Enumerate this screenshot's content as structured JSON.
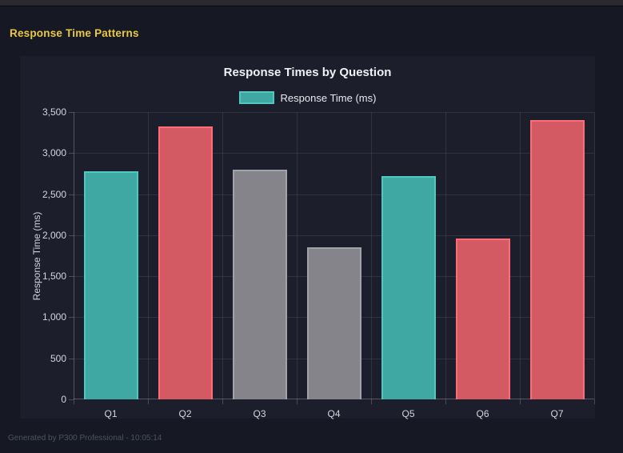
{
  "window": {
    "page_title": "Response Time Patterns"
  },
  "footer": {
    "text": "Generated by P300 Professional - 10:05:14"
  },
  "theme": {
    "page_bg": "#161924",
    "panel_bg": "#1c1e2c",
    "page_title_color": "#e9c93f",
    "teal_fill": "#3fa8a3",
    "teal_border": "#4fc8c0",
    "red_fill": "#d35a62",
    "red_border": "#ff6b79",
    "gray_fill": "#85848a",
    "gray_border": "#a3a2a9"
  },
  "chart_data": {
    "type": "bar",
    "title": "Response Times by Question",
    "xlabel": "",
    "ylabel": "Response Time (ms)",
    "categories": [
      "Q1",
      "Q2",
      "Q3",
      "Q4",
      "Q5",
      "Q6",
      "Q7"
    ],
    "series": [
      {
        "name": "Response Time (ms)",
        "values": [
          2780,
          3320,
          2800,
          1850,
          2720,
          1960,
          3400
        ]
      }
    ],
    "bar_colors": [
      "#3fa8a3",
      "#d35a62",
      "#85848a",
      "#85848a",
      "#3fa8a3",
      "#d35a62",
      "#d35a62"
    ],
    "bar_border_colors": [
      "#4fc8c0",
      "#ff6b79",
      "#a3a2a9",
      "#a3a2a9",
      "#4fc8c0",
      "#ff6b79",
      "#ff6b79"
    ],
    "ylim": [
      0,
      3500
    ],
    "ytick_step": 500,
    "ytick_labels": [
      "0",
      "500",
      "1,000",
      "1,500",
      "2,000",
      "2,500",
      "3,000",
      "3,500"
    ],
    "grid": true,
    "legend_position": "top",
    "legend": [
      {
        "label": "Response Time (ms)",
        "swatch_fill": "#3fa8a3",
        "swatch_border": "#4fc8c0"
      }
    ]
  }
}
